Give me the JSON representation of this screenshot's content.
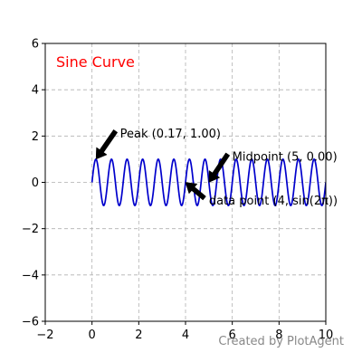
{
  "chart_data": {
    "type": "line",
    "title": "Sine Curve",
    "title_color": "#ff0000",
    "title_placement": "top-left inside axes",
    "xlabel": "",
    "ylabel": "",
    "xlim": [
      -2,
      10
    ],
    "ylim": [
      -6,
      6
    ],
    "x_ticks": [
      -2,
      0,
      2,
      4,
      6,
      8,
      10
    ],
    "y_ticks": [
      -6,
      -4,
      -2,
      0,
      2,
      4,
      6
    ],
    "x_tick_labels": [
      "−2",
      "0",
      "2",
      "4",
      "6",
      "8",
      "10"
    ],
    "y_tick_labels": [
      "−6",
      "−4",
      "−2",
      "0",
      "2",
      "4",
      "6"
    ],
    "grid": true,
    "grid_style": "dashed",
    "legend": "none",
    "series": [
      {
        "function": "y = sin(3π·x)",
        "x_range": [
          0,
          10
        ],
        "color": "#0000cc",
        "line_width": 1.7
      }
    ],
    "annotations": [
      {
        "text": "Peak (0.17, 1.00)",
        "xy": [
          0.17,
          1.0
        ],
        "text_xy": [
          1.2,
          2.1
        ],
        "arrow_color": "#000000"
      },
      {
        "text": "Midpoint (5, 0.00)",
        "xy": [
          5,
          0.0
        ],
        "text_xy": [
          6.0,
          1.1
        ],
        "arrow_color": "#000000"
      },
      {
        "text": "data point (4, sin(2π))",
        "xy": [
          4,
          0.0
        ],
        "text_xy": [
          5.0,
          -0.8
        ],
        "arrow_color": "#000000"
      }
    ],
    "watermark": "Created by PlotAgent",
    "watermark_color": "#888888"
  }
}
